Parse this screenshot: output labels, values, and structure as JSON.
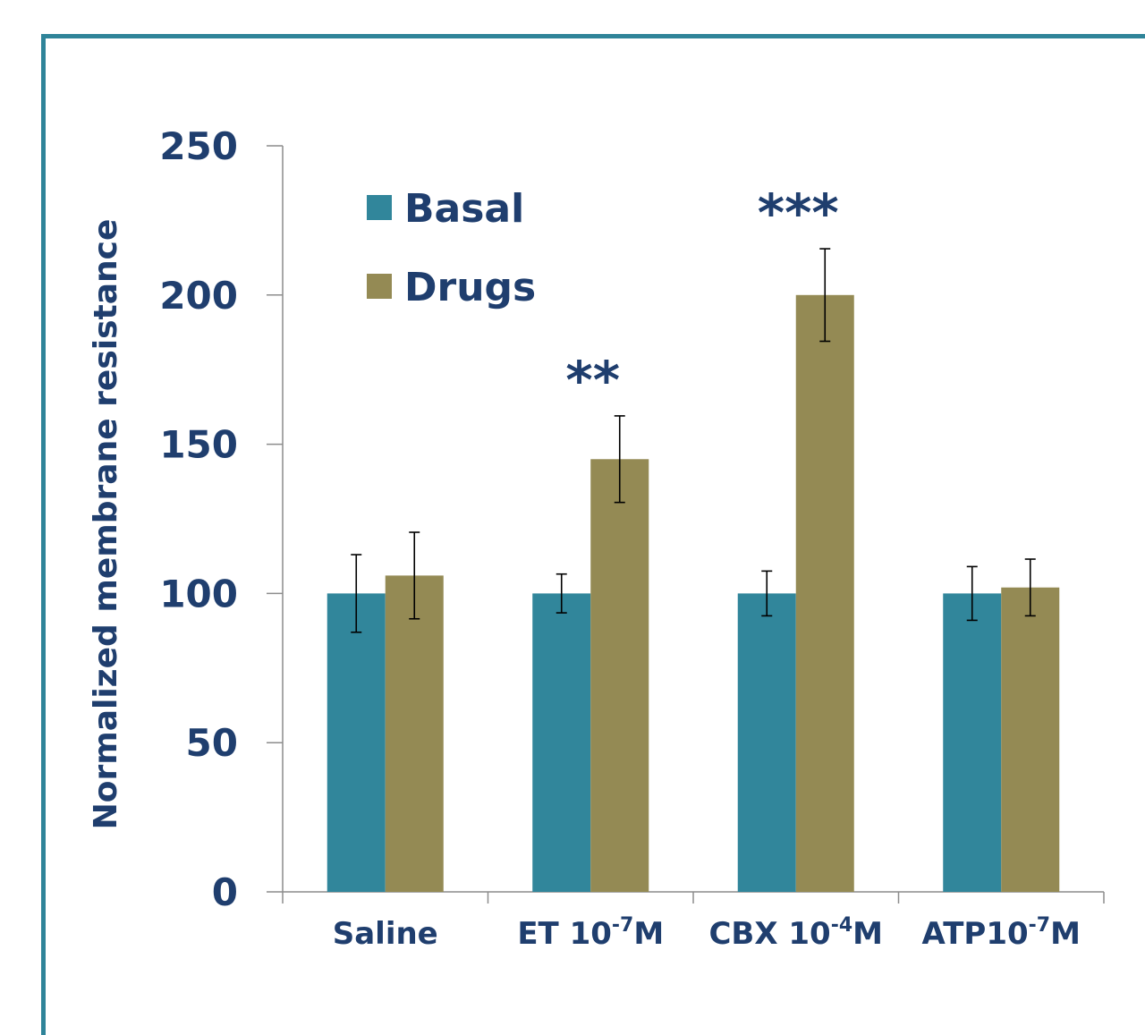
{
  "chart_data": {
    "type": "bar",
    "title": "",
    "xlabel": "",
    "ylabel": "Normalized membrane resistance",
    "ylim": [
      0,
      250
    ],
    "yticks": [
      0,
      50,
      100,
      150,
      200,
      250
    ],
    "grid": false,
    "legend_position": "top-left",
    "categories": [
      {
        "label": "Saline",
        "base": "Saline",
        "sup": "",
        "tail": ""
      },
      {
        "label": "ET 10-7M",
        "base": "ET 10",
        "sup": "-7",
        "tail": "M"
      },
      {
        "label": "CBX 10-4M",
        "base": "CBX 10",
        "sup": "-4",
        "tail": "M"
      },
      {
        "label": "ATP10-7M",
        "base": "ATP10",
        "sup": "-7",
        "tail": "M"
      }
    ],
    "series": [
      {
        "name": "Basal",
        "color": "#31869b",
        "values": [
          100,
          100,
          100,
          100
        ],
        "errors": [
          13,
          6.5,
          7.5,
          9
        ]
      },
      {
        "name": "Drugs",
        "color": "#948a54",
        "values": [
          106,
          145,
          200,
          102
        ],
        "errors": [
          14.5,
          14.5,
          15.5,
          9.5
        ]
      }
    ],
    "annotations": [
      {
        "category": 1,
        "series": 1,
        "text": "**"
      },
      {
        "category": 2,
        "series": 1,
        "text": "***"
      }
    ]
  }
}
